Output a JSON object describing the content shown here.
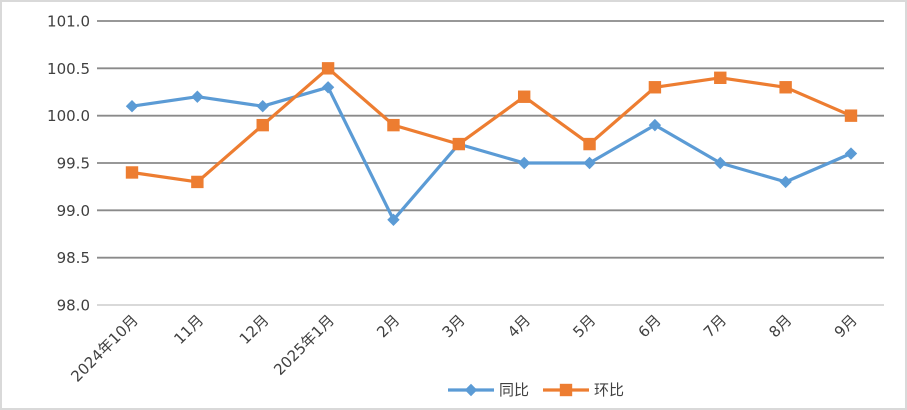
{
  "chart_data": {
    "type": "line",
    "title": "",
    "xlabel": "",
    "ylabel": "",
    "categories": [
      "2024年10月",
      "11月",
      "12月",
      "2025年1月",
      "2月",
      "3月",
      "4月",
      "5月",
      "6月",
      "7月",
      "8月",
      "9月"
    ],
    "series": [
      {
        "name": "同比",
        "marker": "diamond",
        "color": "#5B9BD5",
        "values": [
          100.1,
          100.2,
          100.1,
          100.3,
          98.9,
          99.7,
          99.5,
          99.5,
          99.9,
          99.5,
          99.3,
          99.6
        ]
      },
      {
        "name": "环比",
        "marker": "square",
        "color": "#ED7D31",
        "values": [
          99.4,
          99.3,
          99.9,
          100.5,
          99.9,
          99.7,
          100.2,
          99.7,
          100.3,
          100.4,
          100.3,
          100.0
        ]
      }
    ],
    "ylim": [
      98.0,
      101.0
    ],
    "ytick_step": 0.5,
    "ytick_labels": [
      "98.0",
      "98.5",
      "99.0",
      "99.5",
      "100.0",
      "100.5",
      "101.0"
    ],
    "grid": true,
    "legend_position": "bottom-center"
  },
  "legend": {
    "items": [
      {
        "label": "同比",
        "marker": "diamond",
        "color": "#5B9BD5"
      },
      {
        "label": "环比",
        "marker": "square",
        "color": "#ED7D31"
      }
    ]
  },
  "colors": {
    "series_tongbi": "#5B9BD5",
    "series_huanbi": "#ED7D31",
    "gridline": "#8A8A8A",
    "axis_line": "#D9D9D9",
    "tick_label": "#404040",
    "frame_border": "#D9D9D9",
    "background": "#FFFFFF"
  }
}
